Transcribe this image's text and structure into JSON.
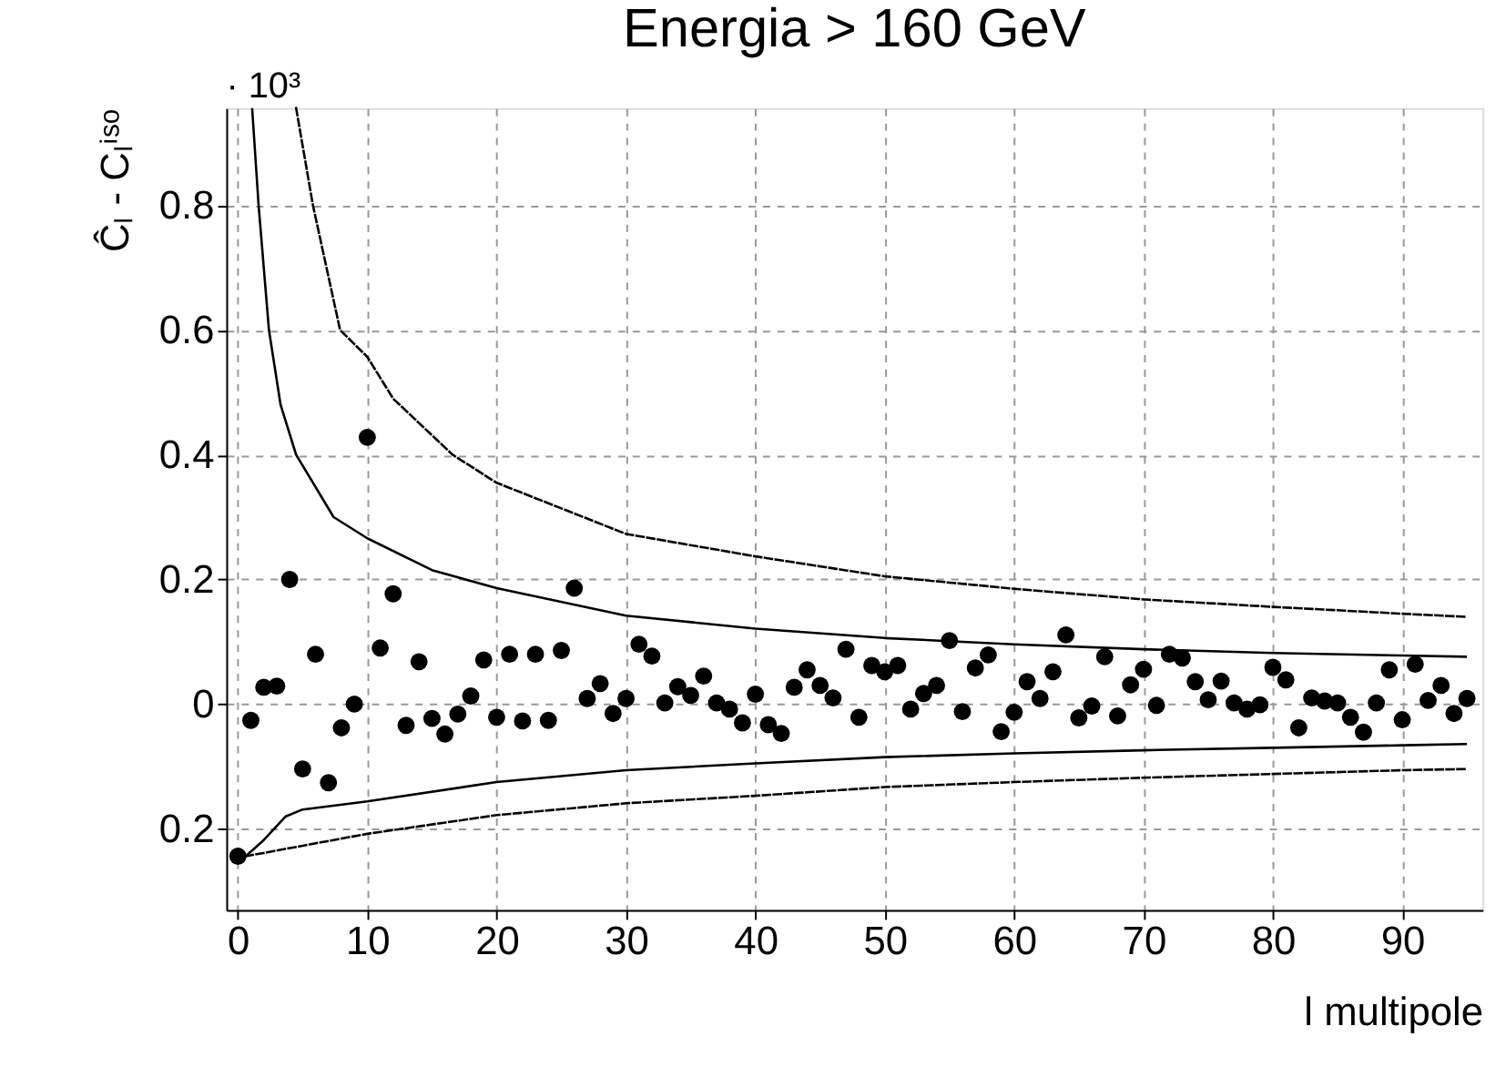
{
  "chart_data": {
    "type": "scatter",
    "title": "Energia > 160 GeV",
    "xlabel": "l multipole",
    "ylabel": "Ĉₗ - Cₗⁱˢᵒ",
    "annotations": [
      "· 10³"
    ],
    "xlim": [
      -0.9,
      96.2
    ],
    "ylim": [
      -0.33,
      0.956
    ],
    "xticks": [
      0,
      10,
      20,
      30,
      40,
      50,
      60,
      70,
      80,
      90
    ],
    "yticks": [
      {
        "value": -0.2,
        "label": "0.2"
      },
      {
        "value": 0,
        "label": "0"
      },
      0.2,
      0.4,
      0.6,
      0.8
    ],
    "grid": true,
    "series": [
      {
        "marker": "circle",
        "color": "#000000",
        "x": [
          0,
          1,
          2,
          3,
          4,
          5,
          6,
          7,
          8,
          9,
          10,
          11,
          12,
          13,
          14,
          15,
          16,
          17,
          18,
          19,
          20,
          21,
          22,
          23,
          24,
          25,
          26,
          27,
          28,
          29,
          30,
          31,
          32,
          33,
          34,
          35,
          36,
          37,
          38,
          39,
          40,
          41,
          42,
          43,
          44,
          45,
          46,
          47,
          48,
          49,
          50,
          51,
          52,
          53,
          54,
          55,
          56,
          57,
          58,
          59,
          60,
          61,
          62,
          63,
          64,
          65,
          66,
          67,
          68,
          69,
          70,
          71,
          72,
          73,
          74,
          75,
          76,
          77,
          78,
          79,
          80,
          81,
          82,
          83,
          84,
          85,
          86,
          87,
          88,
          89,
          90,
          91,
          92,
          93,
          94,
          95
        ],
        "values": [
          -0.244,
          -0.026,
          0.027,
          0.029,
          0.2,
          -0.104,
          0.08,
          -0.126,
          -0.038,
          0.0,
          0.428,
          0.09,
          0.177,
          -0.034,
          0.068,
          -0.023,
          -0.048,
          -0.016,
          0.013,
          0.071,
          -0.021,
          0.08,
          -0.027,
          0.08,
          -0.026,
          0.086,
          0.186,
          0.009,
          0.033,
          -0.015,
          0.009,
          0.096,
          0.077,
          0.002,
          0.028,
          0.014,
          0.045,
          0.002,
          -0.008,
          -0.03,
          0.016,
          -0.033,
          -0.047,
          0.027,
          0.055,
          0.03,
          0.01,
          0.088,
          -0.021,
          0.062,
          0.052,
          0.062,
          -0.008,
          0.017,
          0.03,
          0.102,
          -0.012,
          0.058,
          0.079,
          -0.044,
          -0.013,
          0.036,
          0.009,
          0.052,
          0.111,
          -0.022,
          -0.003,
          0.076,
          -0.019,
          0.031,
          0.056,
          -0.002,
          0.08,
          0.074,
          0.036,
          0.007,
          0.037,
          0.002,
          -0.008,
          -0.001,
          0.059,
          0.039,
          -0.038,
          0.01,
          0.005,
          0.002,
          -0.021,
          -0.045,
          0.002,
          0.055,
          -0.025,
          0.064,
          0.006,
          0.03,
          -0.015,
          0.009
        ]
      },
      {
        "type": "line",
        "line_style": "solid",
        "marker": "none",
        "color": "#000000",
        "x": [
          1.1,
          1.6,
          2.4,
          3.3,
          4.5,
          7.4,
          10,
          15,
          20,
          30,
          40,
          50,
          60,
          70,
          80,
          90,
          95
        ],
        "values": [
          0.956,
          0.8,
          0.6,
          0.48,
          0.4,
          0.3,
          0.266,
          0.215,
          0.186,
          0.142,
          0.121,
          0.106,
          0.096,
          0.088,
          0.082,
          0.078,
          0.076
        ]
      },
      {
        "type": "line",
        "line_style": "dashed",
        "marker": "none",
        "color": "#000000",
        "x": [
          4.5,
          5.8,
          7.9,
          10,
          12,
          16.6,
          20,
          30,
          40,
          50,
          60,
          70,
          80,
          90,
          95
        ],
        "values": [
          0.956,
          0.8,
          0.6,
          0.557,
          0.49,
          0.4,
          0.355,
          0.273,
          0.237,
          0.205,
          0.185,
          0.168,
          0.156,
          0.145,
          0.14
        ]
      },
      {
        "type": "line",
        "line_style": "solid",
        "marker": "none",
        "color": "#000000",
        "x": [
          0.6,
          2,
          3.7,
          5,
          10,
          20,
          30,
          40,
          50,
          60,
          70,
          80,
          90,
          95
        ],
        "values": [
          -0.244,
          -0.218,
          -0.18,
          -0.169,
          -0.156,
          -0.125,
          -0.106,
          -0.095,
          -0.085,
          -0.079,
          -0.074,
          -0.07,
          -0.066,
          -0.064
        ]
      },
      {
        "type": "line",
        "line_style": "dashed",
        "marker": "none",
        "color": "#000000",
        "x": [
          0.6,
          10,
          20,
          30,
          40,
          50,
          60,
          70,
          80,
          90,
          95
        ],
        "values": [
          -0.244,
          -0.208,
          -0.178,
          -0.159,
          -0.147,
          -0.133,
          -0.125,
          -0.118,
          -0.112,
          -0.106,
          -0.104
        ]
      }
    ]
  }
}
